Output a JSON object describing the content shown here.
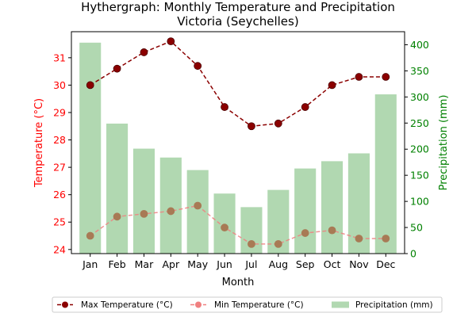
{
  "chart_data": {
    "type": "bar+line",
    "title_line1": "Hythergraph: Monthly Temperature and Precipitation",
    "title_line2": "Victoria (Seychelles)",
    "xlabel": "Month",
    "ylabel_left": "Temperature (°C)",
    "ylabel_right": "Precipitation (mm)",
    "categories": [
      "Jan",
      "Feb",
      "Mar",
      "Apr",
      "May",
      "Jun",
      "Jul",
      "Aug",
      "Sep",
      "Oct",
      "Nov",
      "Dec"
    ],
    "ylim_left": [
      23.85,
      31.95
    ],
    "ylim_right": [
      0,
      425
    ],
    "yticks_left": [
      24,
      25,
      26,
      27,
      28,
      29,
      30,
      31
    ],
    "yticks_right": [
      0,
      50,
      100,
      150,
      200,
      250,
      300,
      350,
      400
    ],
    "series": [
      {
        "name": "Max Temperature (°C)",
        "kind": "line",
        "axis": "left",
        "color": "#8b0000",
        "values": [
          30.0,
          30.6,
          31.2,
          31.6,
          30.7,
          29.2,
          28.5,
          28.6,
          29.2,
          30.0,
          30.3,
          30.3
        ]
      },
      {
        "name": "Min Temperature (°C)",
        "kind": "line",
        "axis": "left",
        "color": "#f08080",
        "values": [
          24.5,
          25.2,
          25.3,
          25.4,
          25.6,
          24.8,
          24.2,
          24.2,
          24.6,
          24.7,
          24.4,
          24.4
        ]
      },
      {
        "name": "Precipitation (mm)",
        "kind": "bar",
        "axis": "right",
        "color": "#b1d8b1",
        "values": [
          404,
          249,
          201,
          184,
          160,
          115,
          89,
          122,
          163,
          177,
          192,
          305
        ]
      }
    ],
    "colors": {
      "left_axis": "#ff0000",
      "right_axis": "#008000"
    },
    "legend_position": "bottom-center",
    "grid": false
  }
}
